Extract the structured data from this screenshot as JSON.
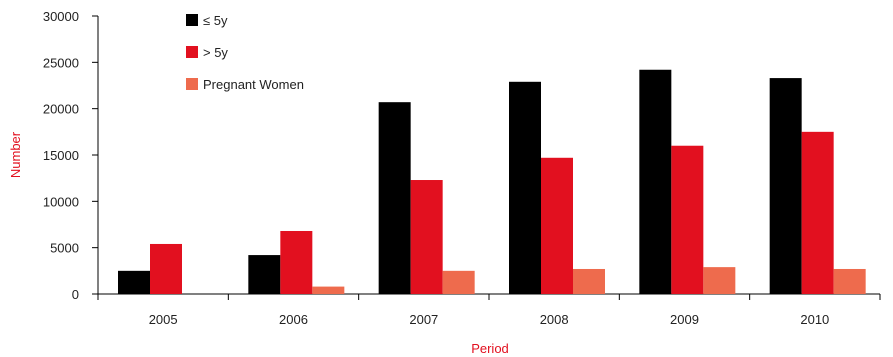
{
  "chart_data": {
    "type": "bar",
    "title": "",
    "xlabel": "Period",
    "ylabel": "Number",
    "ylim": [
      0,
      30000
    ],
    "yticks": [
      0,
      5000,
      10000,
      15000,
      20000,
      25000,
      30000
    ],
    "grid": false,
    "legend_position": "top-left",
    "categories": [
      "2005",
      "2006",
      "2007",
      "2008",
      "2009",
      "2010"
    ],
    "series": [
      {
        "name": "≤ 5y",
        "color": "#000000",
        "values": [
          2500,
          4200,
          20700,
          22900,
          24200,
          23300
        ]
      },
      {
        "name": "> 5y",
        "color": "#e2101f",
        "values": [
          5400,
          6800,
          12300,
          14700,
          16000,
          17500
        ]
      },
      {
        "name": "Pregnant Women",
        "color": "#ee6b4d",
        "values": [
          0,
          800,
          2500,
          2700,
          2900,
          2700
        ]
      }
    ],
    "axis_title_color": "#e2101f"
  }
}
